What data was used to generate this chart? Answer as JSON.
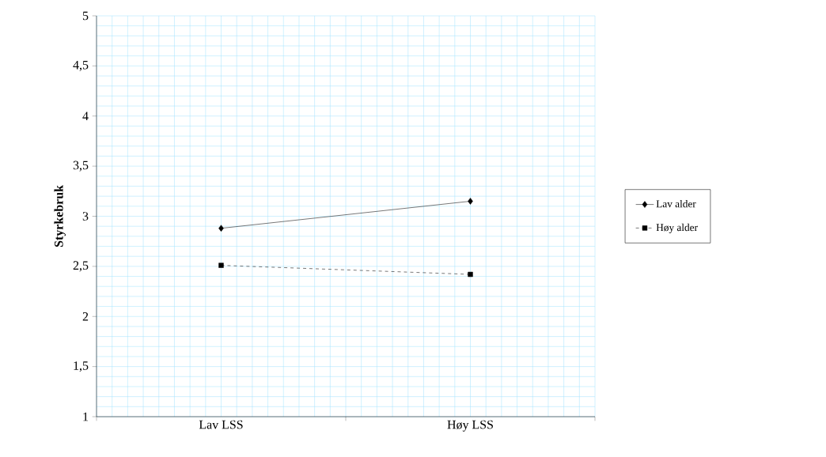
{
  "chart_data": {
    "type": "line",
    "ylabel": "Styrkebruk",
    "categories": [
      "Lav LSS",
      "Høy LSS"
    ],
    "series": [
      {
        "name": "Lav alder",
        "color": "#000000",
        "values": [
          2.88,
          3.15
        ],
        "marker": "diamond",
        "line_style": "solid"
      },
      {
        "name": "Høy alder",
        "color": "#000000",
        "values": [
          2.51,
          2.42
        ],
        "marker": "square",
        "line_style": "dashed"
      }
    ],
    "ylim": [
      1,
      5
    ],
    "yticks": [
      1,
      {
        "value": 1.5,
        "label": "1,5"
      },
      2,
      {
        "value": 2.5,
        "label": "2,5"
      },
      3,
      {
        "value": 3.5,
        "label": "3,5"
      },
      4,
      {
        "value": 4.5,
        "label": "4,5"
      },
      5
    ],
    "grid": true,
    "legend": "right"
  }
}
